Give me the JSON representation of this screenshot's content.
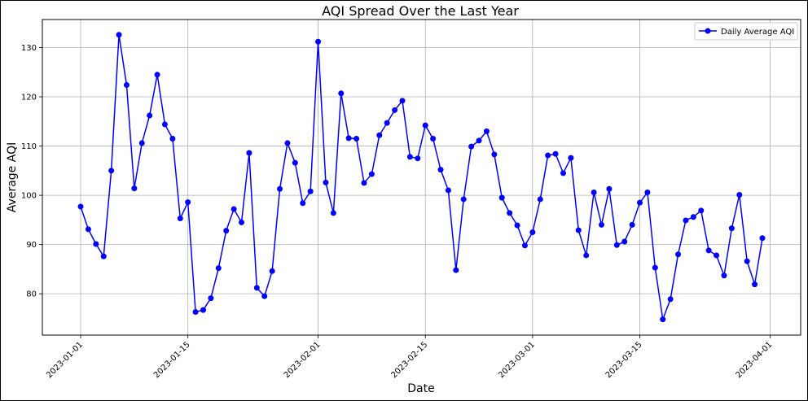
{
  "chart_data": {
    "type": "line",
    "title": "AQI Spread Over the Last Year",
    "xlabel": "Date",
    "ylabel": "Average AQI",
    "x_start": "2023-01-01",
    "x_ticks": [
      "2023-01-01",
      "2023-01-15",
      "2023-02-01",
      "2023-02-15",
      "2023-03-01",
      "2023-03-15",
      "2023-04-01"
    ],
    "y_ticks": [
      "80",
      "90",
      "100",
      "110",
      "120",
      "130"
    ],
    "xlim": [
      "2022-12-27",
      "2023-04-05"
    ],
    "ylim": [
      71.6,
      135.7
    ],
    "grid": true,
    "legend_position": "top-right",
    "color": "#0000ff",
    "series": [
      {
        "name": "Daily Average AQI",
        "values": [
          97.7,
          93.1,
          90.1,
          87.6,
          105.0,
          132.6,
          122.4,
          101.4,
          110.6,
          116.2,
          124.5,
          114.4,
          111.5,
          95.3,
          98.6,
          76.3,
          76.7,
          79.1,
          85.2,
          92.8,
          97.2,
          94.5,
          108.6,
          81.2,
          79.5,
          84.6,
          101.3,
          110.6,
          106.6,
          98.4,
          100.8,
          131.2,
          102.6,
          96.4,
          120.7,
          111.6,
          111.5,
          102.5,
          104.3,
          112.2,
          114.7,
          117.3,
          119.2,
          107.8,
          107.5,
          114.2,
          111.5,
          105.2,
          101.0,
          84.8,
          99.2,
          109.9,
          111.1,
          113.0,
          108.3,
          99.5,
          96.4,
          93.9,
          89.8,
          92.5,
          99.2,
          108.1,
          108.4,
          104.5,
          107.6,
          92.9,
          87.8,
          100.6,
          94.0,
          101.3,
          89.9,
          90.6,
          94.0,
          98.5,
          100.6,
          85.3,
          74.8,
          78.9,
          88.0,
          94.9,
          95.6,
          96.9,
          88.8,
          87.8,
          83.7,
          93.3,
          100.1,
          86.6,
          81.9,
          91.3
        ]
      }
    ]
  }
}
